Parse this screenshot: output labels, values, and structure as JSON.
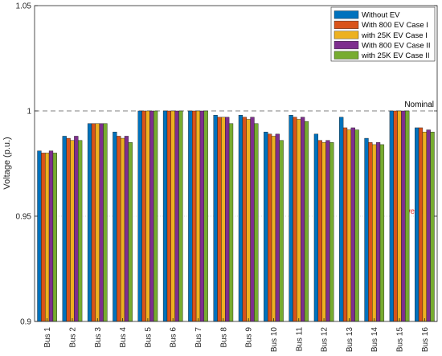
{
  "chart_data": {
    "type": "bar",
    "title": "",
    "xlabel": "",
    "ylabel": "Voltage (p.u.)",
    "ylim": [
      0.9,
      1.05
    ],
    "yticks": [
      "0.9",
      "0.95",
      "1",
      "1.05"
    ],
    "grid": false,
    "legend_position": "top-right",
    "categories": [
      "Bus 1",
      "Bus 2",
      "Bus 3",
      "Bus 4",
      "Bus 5",
      "Bus 6",
      "Bus 7",
      "Bus 8",
      "Bus 9",
      "Bus 10",
      "Bus 11",
      "Bus 12",
      "Bus 13",
      "Bus 14",
      "Bus 15",
      "Bus 16"
    ],
    "series": [
      {
        "name": "Without EV",
        "color": "#0072BD",
        "values": [
          0.981,
          0.988,
          0.994,
          0.99,
          1.0,
          1.0,
          1.0,
          0.998,
          0.998,
          0.99,
          0.998,
          0.989,
          0.997,
          0.987,
          1.0,
          0.992
        ]
      },
      {
        "name": "With 800 EV Case I",
        "color": "#D95319",
        "values": [
          0.98,
          0.987,
          0.994,
          0.988,
          1.0,
          1.0,
          1.0,
          0.997,
          0.997,
          0.989,
          0.997,
          0.986,
          0.992,
          0.985,
          1.0,
          0.992
        ]
      },
      {
        "name": "with 25K EV Case I",
        "color": "#EDB120",
        "values": [
          0.98,
          0.986,
          0.994,
          0.987,
          1.0,
          1.0,
          1.0,
          0.997,
          0.996,
          0.988,
          0.996,
          0.985,
          0.991,
          0.984,
          1.0,
          0.99
        ]
      },
      {
        "name": "With 800 EV Case II",
        "color": "#7E2F8E",
        "values": [
          0.981,
          0.988,
          0.994,
          0.988,
          1.0,
          1.0,
          1.0,
          0.997,
          0.997,
          0.989,
          0.997,
          0.986,
          0.992,
          0.985,
          1.0,
          0.991
        ]
      },
      {
        "name": "with 25K EV Case II",
        "color": "#77AC30",
        "values": [
          0.98,
          0.986,
          0.994,
          0.985,
          1.0,
          1.0,
          1.0,
          0.994,
          0.994,
          0.986,
          0.995,
          0.985,
          0.991,
          0.984,
          1.0,
          0.99
        ]
      }
    ],
    "reference_lines": [
      {
        "label": "Nominal",
        "value": 1.0,
        "color": "#7f7f7f",
        "text_color": "#000000",
        "style": "dashed"
      },
      {
        "label": "Lower limit",
        "value": 0.95,
        "color": "#d9d9d9",
        "text_color": "#e8332a",
        "style": "dotted"
      }
    ]
  }
}
